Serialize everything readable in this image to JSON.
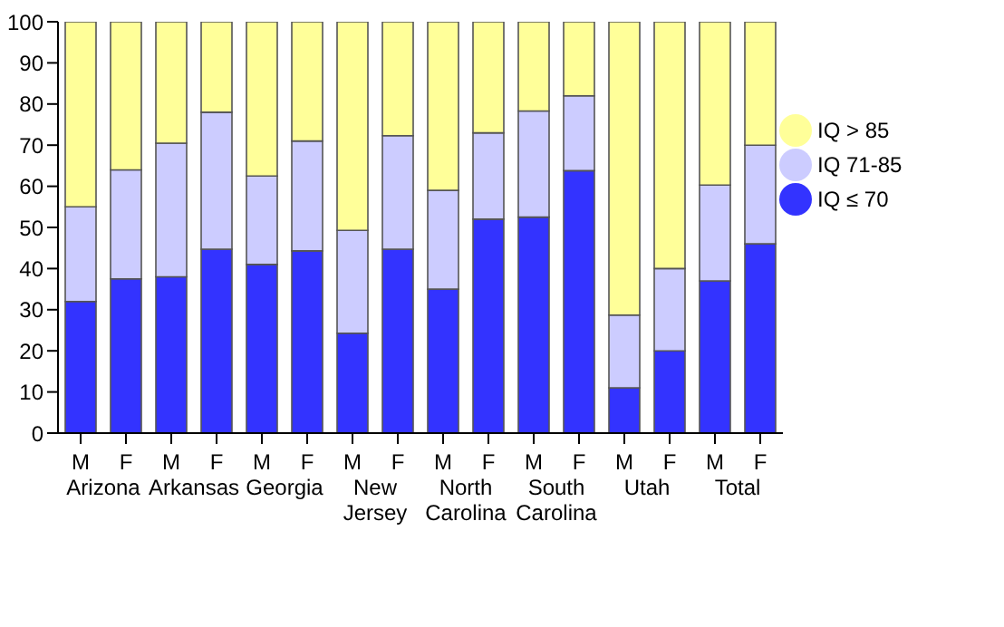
{
  "chart_data": {
    "type": "bar",
    "stacked": true,
    "categories": [
      "M",
      "F",
      "M",
      "F",
      "M",
      "F",
      "M",
      "F",
      "M",
      "F",
      "M",
      "F",
      "M",
      "F",
      "M",
      "F"
    ],
    "annotations": [
      "Arizona",
      "Arkansas",
      "Georgia",
      "New Jersey",
      "North Carolina",
      "South Carolina",
      "Utah",
      "Total"
    ],
    "series": [
      {
        "name": "IQ ≤ 70",
        "color": "#3333ff",
        "values": [
          32,
          37.5,
          38,
          44.7,
          41,
          44.3,
          24.3,
          44.7,
          35,
          52,
          52.5,
          63.8,
          11,
          20,
          37,
          46
        ]
      },
      {
        "name": "IQ 71-85",
        "color": "#ccccff",
        "values": [
          23,
          26.5,
          32.5,
          33.3,
          21.5,
          26.7,
          25,
          27.6,
          24,
          21,
          25.8,
          18.2,
          17.7,
          20,
          23.3,
          24
        ]
      },
      {
        "name": "IQ > 85",
        "color": "#ffff99",
        "values": [
          45,
          36,
          29.5,
          22,
          37.5,
          29,
          50.7,
          27.7,
          41,
          27,
          21.7,
          18,
          71.3,
          60,
          39.7,
          30
        ]
      }
    ],
    "ylim": [
      0,
      100
    ],
    "yticks": [
      0,
      10,
      20,
      30,
      40,
      50,
      60,
      70,
      80,
      90,
      100
    ],
    "grid": false,
    "legend": "right"
  }
}
